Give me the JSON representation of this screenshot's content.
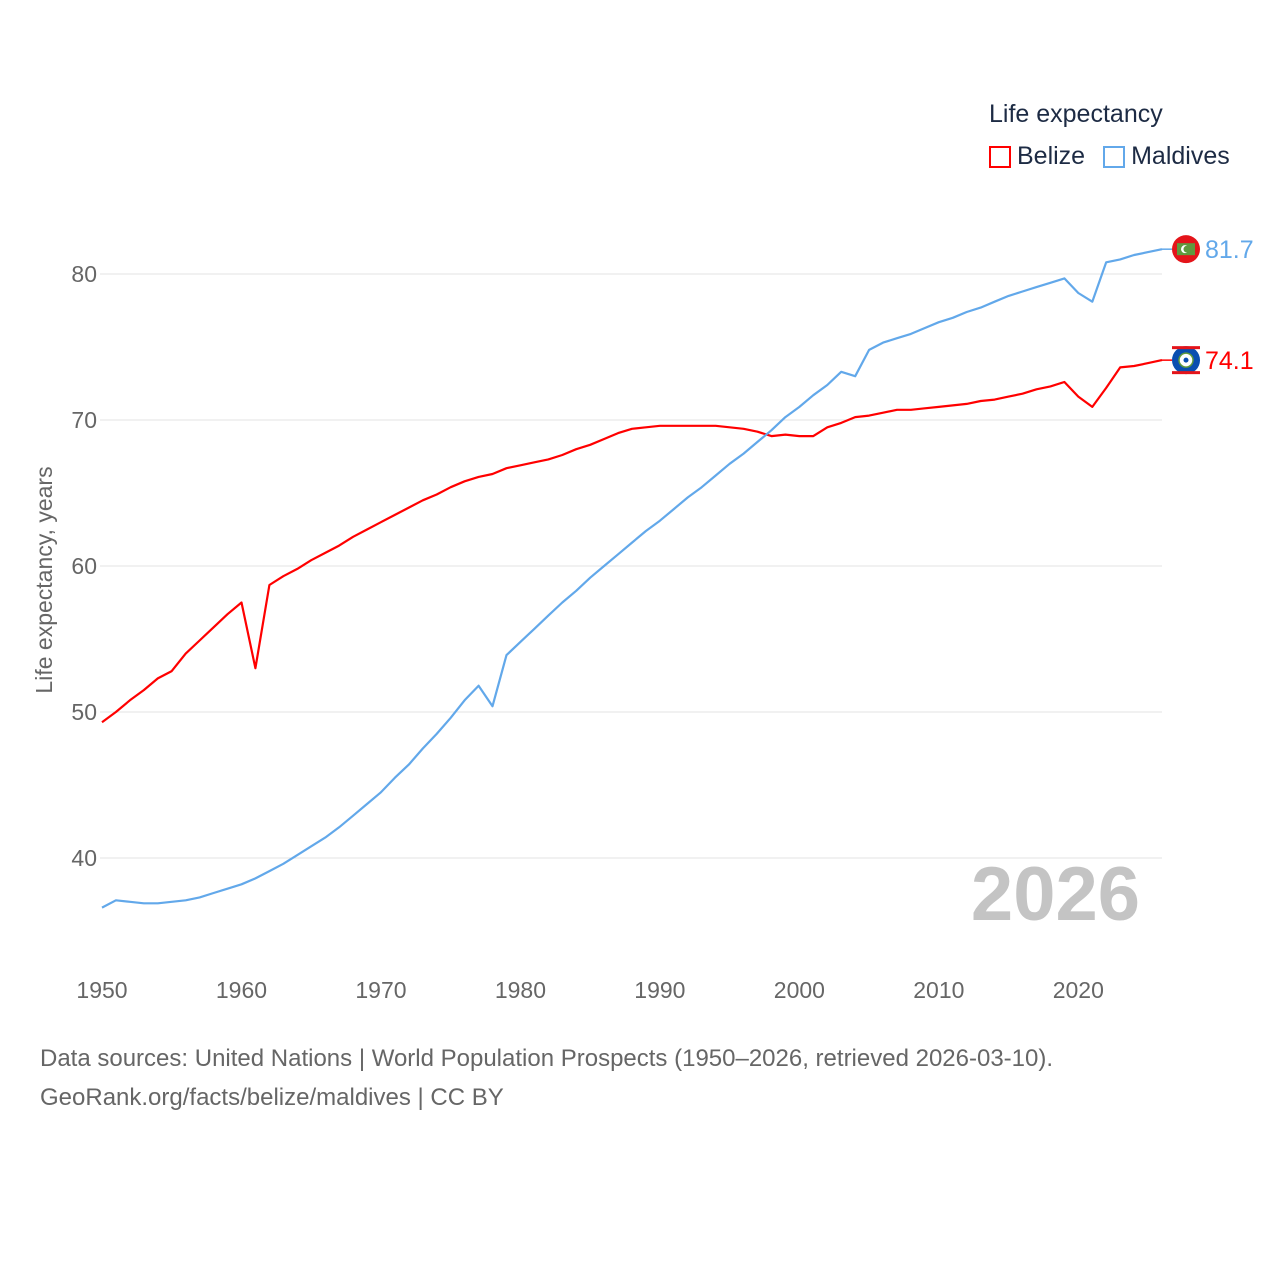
{
  "chart_data": {
    "type": "line",
    "title": "",
    "xlabel": "",
    "ylabel": "Life expectancy, years",
    "xlim": [
      1950,
      2026
    ],
    "ylim": [
      35,
      84
    ],
    "xticks": [
      1950,
      1960,
      1970,
      1980,
      1990,
      2000,
      2010,
      2020
    ],
    "yticks": [
      40,
      50,
      60,
      70,
      80
    ],
    "grid": true,
    "legend_placement": "top-right",
    "legend_title": "Life expectancy",
    "year_label": "2026",
    "x_start": 1950,
    "series": [
      {
        "name": "Belize",
        "color": "#ff0000",
        "end_label": "74.1",
        "values": [
          49.3,
          50.0,
          50.8,
          51.5,
          52.3,
          52.8,
          54.0,
          54.9,
          55.8,
          56.7,
          57.5,
          53.0,
          58.7,
          59.3,
          59.8,
          60.4,
          60.9,
          61.4,
          62.0,
          62.5,
          63.0,
          63.5,
          64.0,
          64.5,
          64.9,
          65.4,
          65.8,
          66.1,
          66.3,
          66.7,
          66.9,
          67.1,
          67.3,
          67.6,
          68.0,
          68.3,
          68.7,
          69.1,
          69.4,
          69.5,
          69.6,
          69.6,
          69.6,
          69.6,
          69.6,
          69.5,
          69.4,
          69.2,
          68.9,
          69.0,
          68.9,
          68.9,
          69.5,
          69.8,
          70.2,
          70.3,
          70.5,
          70.7,
          70.7,
          70.8,
          70.9,
          71.0,
          71.1,
          71.3,
          71.4,
          71.6,
          71.8,
          72.1,
          72.3,
          72.6,
          71.6,
          70.9,
          72.2,
          73.6,
          73.7,
          73.9,
          74.1
        ]
      },
      {
        "name": "Maldives",
        "color": "#62a8ea",
        "end_label": "81.7",
        "values": [
          36.6,
          37.1,
          37.0,
          36.9,
          36.9,
          37.0,
          37.1,
          37.3,
          37.6,
          37.9,
          38.2,
          38.6,
          39.1,
          39.6,
          40.2,
          40.8,
          41.4,
          42.1,
          42.9,
          43.7,
          44.5,
          45.5,
          46.4,
          47.5,
          48.5,
          49.6,
          50.8,
          51.8,
          50.4,
          53.9,
          54.8,
          55.7,
          56.6,
          57.5,
          58.3,
          59.2,
          60.0,
          60.8,
          61.6,
          62.4,
          63.1,
          63.9,
          64.7,
          65.4,
          66.2,
          67.0,
          67.7,
          68.5,
          69.3,
          70.2,
          70.9,
          71.7,
          72.4,
          73.3,
          73.0,
          74.8,
          75.3,
          75.6,
          75.9,
          76.3,
          76.7,
          77.0,
          77.4,
          77.7,
          78.1,
          78.5,
          78.8,
          79.1,
          79.4,
          79.7,
          78.7,
          78.1,
          80.8,
          81.0,
          81.3,
          81.5,
          81.7
        ]
      }
    ]
  },
  "footer": {
    "line1": "Data sources: United Nations | World Population Prospects (1950–2026, retrieved 2026-03-10).",
    "line2": "GeoRank.org/facts/belize/maldives | CC BY"
  }
}
